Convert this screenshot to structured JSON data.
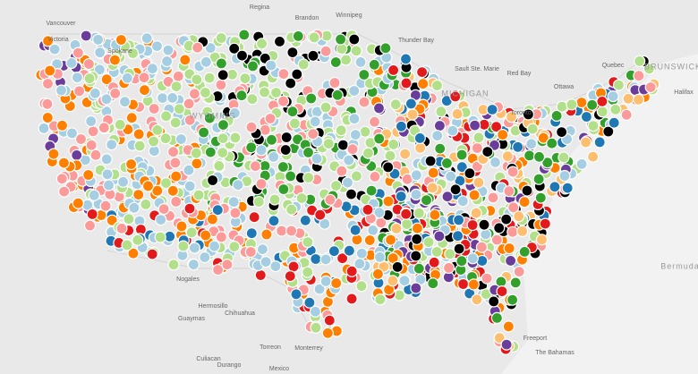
{
  "places": [
    {
      "label": "Regina"
    },
    {
      "label": "Brandon"
    },
    {
      "label": "Winnipeg"
    },
    {
      "label": "Vancouver"
    },
    {
      "label": "Victoria"
    },
    {
      "label": "Spokane"
    },
    {
      "label": "Thunder Bay"
    },
    {
      "label": "Sault Ste. Marie"
    },
    {
      "label": "Red Bay"
    },
    {
      "label": "Ottawa"
    },
    {
      "label": "Quebec"
    },
    {
      "label": "Toronto"
    },
    {
      "label": "Halifax"
    },
    {
      "label": "BRUNSWICK"
    },
    {
      "label": "WYOMING"
    },
    {
      "label": "MICHIGAN"
    },
    {
      "label": "Bermuda"
    },
    {
      "label": "The Bahamas"
    },
    {
      "label": "Freeport"
    },
    {
      "label": "Nogales"
    },
    {
      "label": "Hermosillo"
    },
    {
      "label": "Guaymas"
    },
    {
      "label": "Chihuahua"
    },
    {
      "label": "Torreon"
    },
    {
      "label": "Monterrey"
    },
    {
      "label": "Culiacan"
    },
    {
      "label": "Durango"
    },
    {
      "label": "Mexico"
    }
  ]
}
